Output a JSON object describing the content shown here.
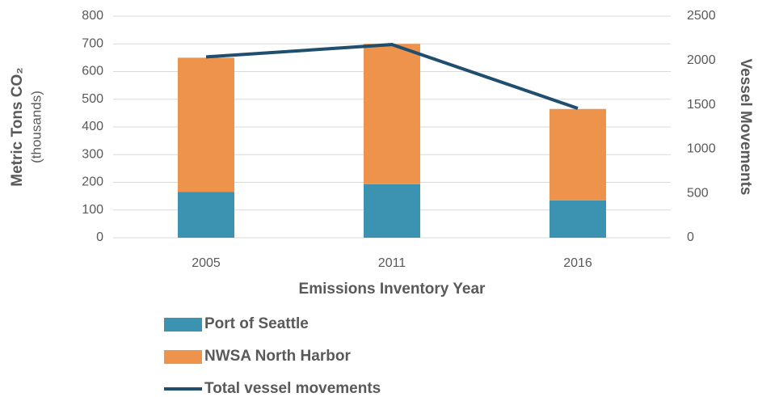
{
  "chart_data": {
    "type": "bar",
    "stacked": true,
    "xlabel": "Emissions Inventory Year",
    "ylabel": "Metric Tons CO₂",
    "ylabel_note": "(thousands)",
    "y2label": "Vessel Movements",
    "categories": [
      "2005",
      "2011",
      "2016"
    ],
    "series": [
      {
        "name": "Port of Seattle",
        "type": "bar",
        "axis": "y",
        "color": "#3b93b1",
        "values": [
          165,
          193,
          135
        ]
      },
      {
        "name": "NWSA North Harbor",
        "type": "bar",
        "axis": "y",
        "color": "#ee934c",
        "values": [
          485,
          507,
          330
        ]
      },
      {
        "name": "Total vessel movements",
        "type": "line",
        "axis": "y2",
        "color": "#1f4e6e",
        "values": [
          2040,
          2180,
          1460
        ]
      }
    ],
    "ylim": [
      0,
      800
    ],
    "yticks": [
      0,
      100,
      200,
      300,
      400,
      500,
      600,
      700,
      800
    ],
    "y2lim": [
      0,
      2500
    ],
    "y2ticks": [
      0,
      500,
      1000,
      1500,
      2000,
      2500
    ],
    "grid": true
  }
}
